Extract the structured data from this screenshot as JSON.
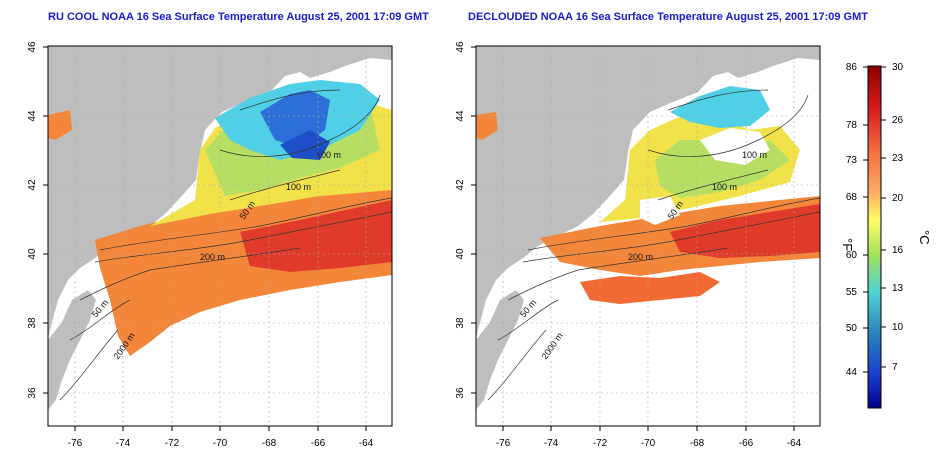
{
  "maps": [
    {
      "title": "RU COOL NOAA 16 Sea Surface Temperature August 25, 2001 17:09 GMT",
      "lat_ticks": [
        "46",
        "44",
        "42",
        "40",
        "38",
        "36"
      ],
      "lon_ticks": [
        "-76",
        "-74",
        "-72",
        "-70",
        "-68",
        "-66",
        "-64"
      ],
      "contour_labels": [
        "100 m",
        "100 m",
        "50 m",
        "200 m",
        "50 m",
        "2000 m"
      ]
    },
    {
      "title": "DECLOUDED NOAA 16 Sea Surface Temperature August 25, 2001 17:09 GMT",
      "lat_ticks": [
        "46",
        "44",
        "42",
        "40",
        "38",
        "36"
      ],
      "lon_ticks": [
        "-76",
        "-74",
        "-72",
        "-70",
        "-68",
        "-66",
        "-64"
      ],
      "contour_labels": [
        "100 m",
        "100 m",
        "50 m",
        "200 m",
        "50 m",
        "2000 m"
      ]
    }
  ],
  "colorbar": {
    "fahrenheit_label": "°F",
    "celsius_label": "°C",
    "fahrenheit_ticks": [
      "86",
      "78",
      "73",
      "68",
      "60",
      "55",
      "50",
      "44"
    ],
    "celsius_ticks": [
      "30",
      "26",
      "23",
      "20",
      "16",
      "13",
      "10",
      "7"
    ],
    "colors": [
      "#8b0000",
      "#d7191c",
      "#f46d43",
      "#fdae61",
      "#ffff66",
      "#a6e05a",
      "#4fd3d3",
      "#2b83ba",
      "#1a3fcf",
      "#00008b"
    ]
  },
  "map_colors": {
    "land": "#bebebe",
    "warm": "#e8382a",
    "orange": "#f4863a",
    "yellow": "#f5e14a",
    "green": "#b9e064",
    "cyan": "#4fd0e6",
    "blue": "#2d6fd8"
  }
}
